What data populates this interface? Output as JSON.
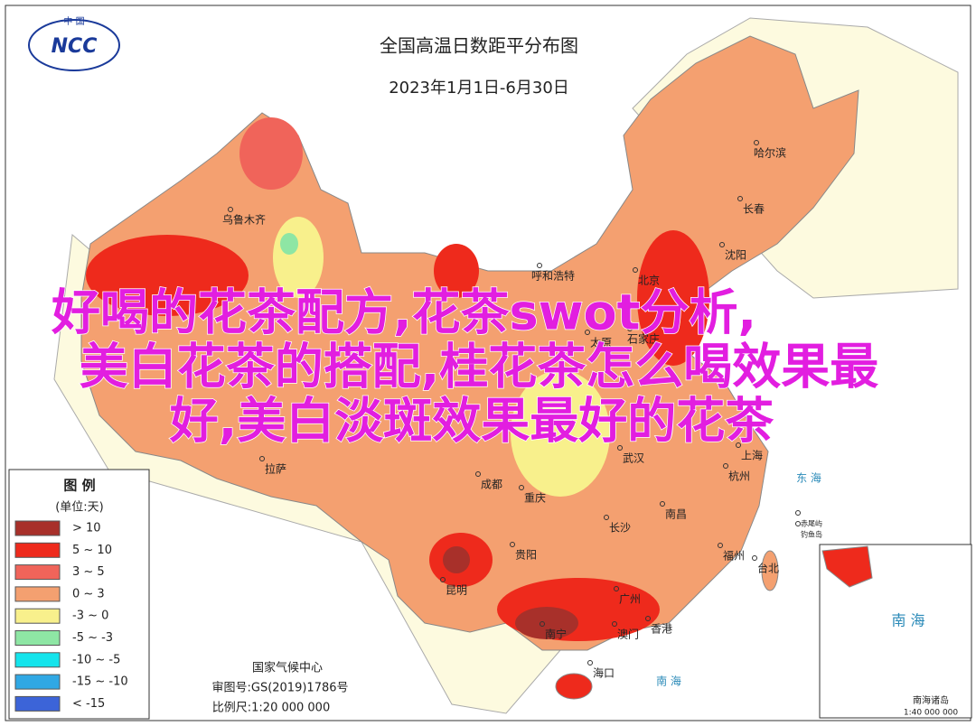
{
  "logo": {
    "top": "中 国",
    "mark": "NCC"
  },
  "header": {
    "title": "全国高温日数距平分布图",
    "subtitle": "2023年1月1日-6月30日"
  },
  "overlay": {
    "lines": [
      "好喝的花茶配方,花茶swot分析,",
      "美白花茶的搭配,桂花茶怎么喝效果最",
      "好,美白淡斑效果最好的花茶"
    ]
  },
  "legend": {
    "title": "图 例",
    "unit": "(单位:天)",
    "items": [
      {
        "label": "> 10",
        "color": "#a8302a"
      },
      {
        "label": "5 ~ 10",
        "color": "#ee2a1c"
      },
      {
        "label": "3 ~ 5",
        "color": "#f0645a"
      },
      {
        "label": "0 ~ 3",
        "color": "#f4a070"
      },
      {
        "label": "-3 ~ 0",
        "color": "#f8f08c"
      },
      {
        "label": "-5 ~ -3",
        "color": "#8ee6a4"
      },
      {
        "label": "-10 ~ -5",
        "color": "#14e4ec"
      },
      {
        "label": "-15 ~ -10",
        "color": "#30a8e4"
      },
      {
        "label": "< -15",
        "color": "#3c64d8"
      }
    ]
  },
  "cities": [
    "哈尔滨",
    "长春",
    "沈阳",
    "乌鲁木齐",
    "呼和浩特",
    "北京",
    "太原",
    "石家庄",
    "拉萨",
    "成都",
    "重庆",
    "武汉",
    "上海",
    "杭州",
    "长沙",
    "南昌",
    "贵阳",
    "福州",
    "台北",
    "昆明",
    "广州",
    "南宁",
    "澳门",
    "香港",
    "海口",
    "钓鱼岛",
    "赤尾屿"
  ],
  "seas": [
    "东 海",
    "南 海"
  ],
  "inset": {
    "sea": "南 海",
    "title": "南海诸岛",
    "scale": "1:40 000 000"
  },
  "footer": {
    "agency": "国家气候中心",
    "approval": "审图号:GS(2019)1786号",
    "scale": "比例尺:1:20 000 000"
  }
}
